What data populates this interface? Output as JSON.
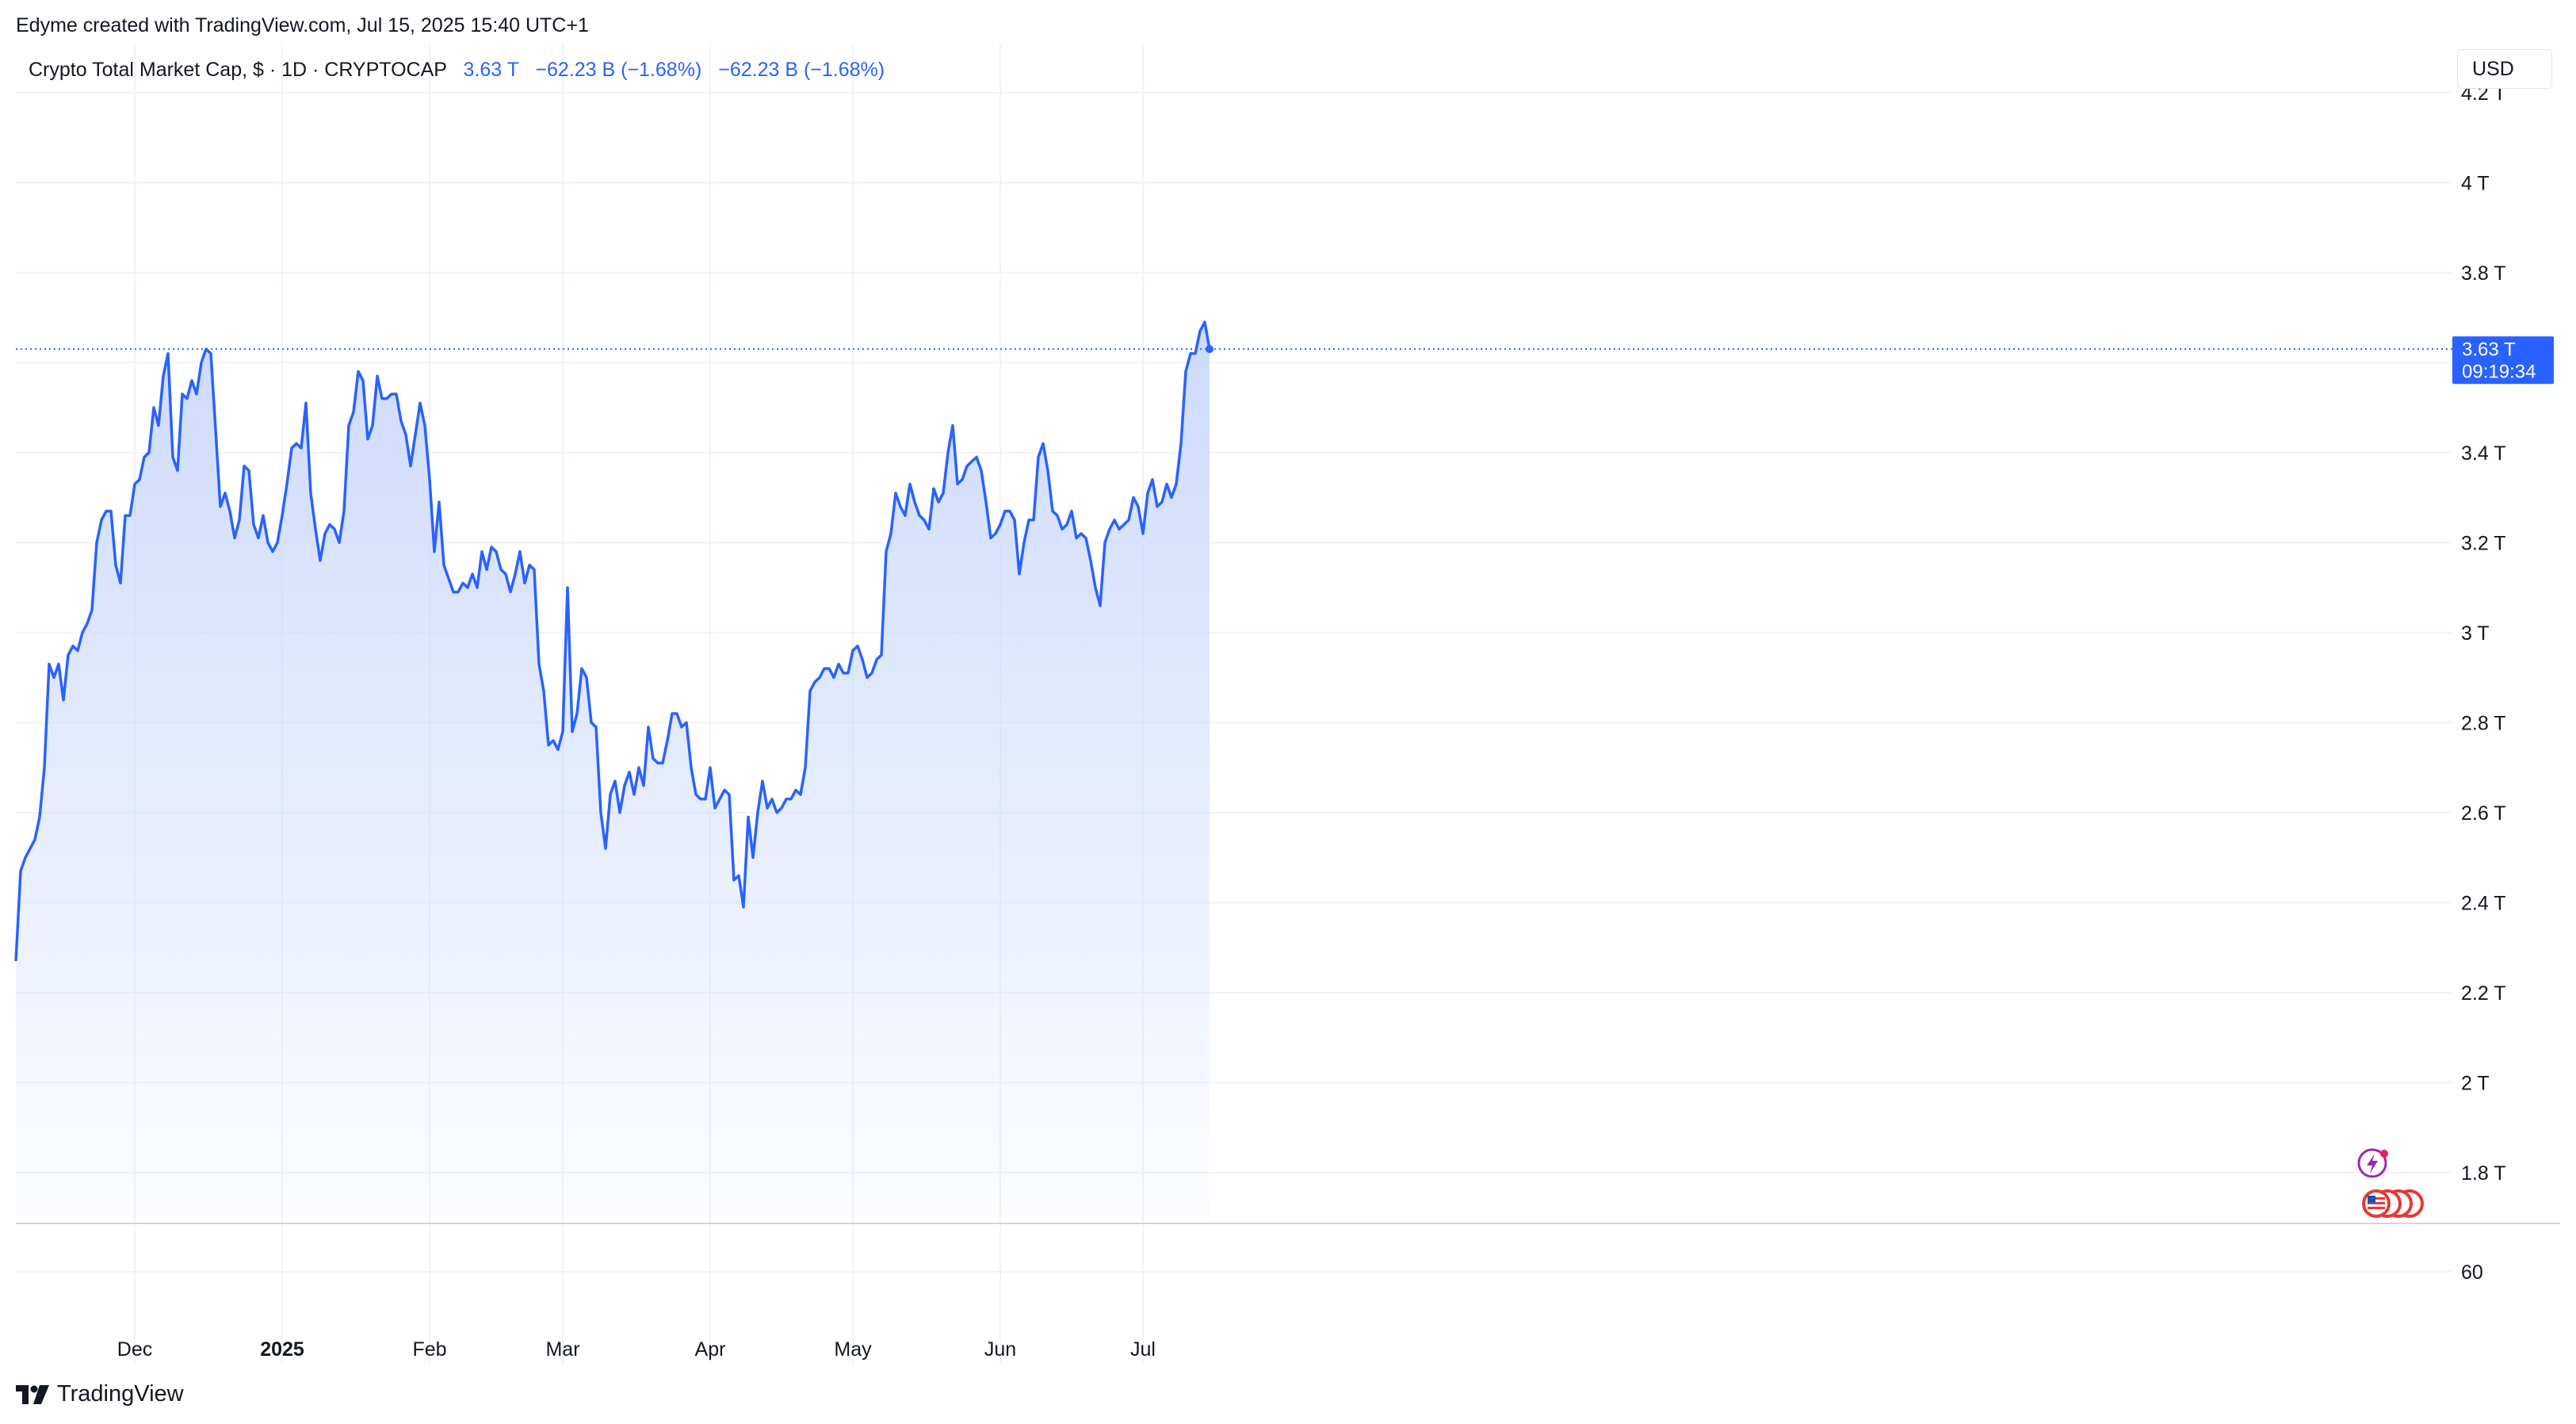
{
  "header": {
    "attribution": "Edyme created with TradingView.com, Jul 15, 2025 15:40 UTC+1"
  },
  "legend": {
    "symbol": "Crypto Total Market Cap, $ · 1D · CRYPTOCAP",
    "last": "3.63 T",
    "change1": "−62.23 B (−1.68%)",
    "change2": "−62.23 B (−1.68%)"
  },
  "currency_button": "USD",
  "price_tag": {
    "value": "3.63 T",
    "countdown": "09:19:34"
  },
  "footer": {
    "brand": "TradingView"
  },
  "colors": {
    "line": "#2962ff",
    "fill_top": "#c8d6fb",
    "grid": "#f0f3fa"
  },
  "chart_data": {
    "type": "area",
    "title": "Crypto Total Market Cap, $ · 1D · CRYPTOCAP",
    "xlabel": "",
    "ylabel": "",
    "y_unit": "T",
    "ylim": [
      1.7,
      4.3
    ],
    "y_ticks": [
      1.8,
      2.0,
      2.2,
      2.4,
      2.6,
      2.8,
      3.0,
      3.2,
      3.4,
      3.6,
      3.8,
      4.0,
      4.2
    ],
    "y_tick_labels": [
      "1.8 T",
      "2 T",
      "2.2 T",
      "2.4 T",
      "2.6 T",
      "2.8 T",
      "3 T",
      "3.2 T",
      "3.4 T",
      "3.6 T",
      "3.8 T",
      "4 T",
      "4.2 T"
    ],
    "x_ticks": [
      {
        "date": "2024-12-01",
        "label": "Dec",
        "bold": false
      },
      {
        "date": "2025-01-01",
        "label": "2025",
        "bold": true
      },
      {
        "date": "2025-02-01",
        "label": "Feb",
        "bold": false
      },
      {
        "date": "2025-03-01",
        "label": "Mar",
        "bold": false
      },
      {
        "date": "2025-04-01",
        "label": "Apr",
        "bold": false
      },
      {
        "date": "2025-05-01",
        "label": "May",
        "bold": false
      },
      {
        "date": "2025-06-01",
        "label": "Jun",
        "bold": false
      },
      {
        "date": "2025-07-01",
        "label": "Jul",
        "bold": false
      }
    ],
    "last_value": 3.63,
    "lower_pane": {
      "tick_label": "60"
    },
    "series": [
      {
        "values": [
          [
            "2024-11-06",
            2.27
          ],
          [
            "2024-11-07",
            2.47
          ],
          [
            "2024-11-08",
            2.5
          ],
          [
            "2024-11-09",
            2.52
          ],
          [
            "2024-11-10",
            2.54
          ],
          [
            "2024-11-11",
            2.59
          ],
          [
            "2024-11-12",
            2.7
          ],
          [
            "2024-11-13",
            2.93
          ],
          [
            "2024-11-14",
            2.9
          ],
          [
            "2024-11-15",
            2.93
          ],
          [
            "2024-11-16",
            2.85
          ],
          [
            "2024-11-17",
            2.95
          ],
          [
            "2024-11-18",
            2.97
          ],
          [
            "2024-11-19",
            2.96
          ],
          [
            "2024-11-20",
            3.0
          ],
          [
            "2024-11-21",
            3.02
          ],
          [
            "2024-11-22",
            3.05
          ],
          [
            "2024-11-23",
            3.2
          ],
          [
            "2024-11-24",
            3.25
          ],
          [
            "2024-11-25",
            3.27
          ],
          [
            "2024-11-26",
            3.27
          ],
          [
            "2024-11-27",
            3.15
          ],
          [
            "2024-11-28",
            3.11
          ],
          [
            "2024-11-29",
            3.26
          ],
          [
            "2024-11-30",
            3.26
          ],
          [
            "2024-12-01",
            3.33
          ],
          [
            "2024-12-02",
            3.34
          ],
          [
            "2024-12-03",
            3.39
          ],
          [
            "2024-12-04",
            3.4
          ],
          [
            "2024-12-05",
            3.5
          ],
          [
            "2024-12-06",
            3.46
          ],
          [
            "2024-12-07",
            3.57
          ],
          [
            "2024-12-08",
            3.62
          ],
          [
            "2024-12-09",
            3.39
          ],
          [
            "2024-12-10",
            3.36
          ],
          [
            "2024-12-11",
            3.53
          ],
          [
            "2024-12-12",
            3.52
          ],
          [
            "2024-12-13",
            3.56
          ],
          [
            "2024-12-14",
            3.53
          ],
          [
            "2024-12-15",
            3.6
          ],
          [
            "2024-12-16",
            3.63
          ],
          [
            "2024-12-17",
            3.62
          ],
          [
            "2024-12-18",
            3.45
          ],
          [
            "2024-12-19",
            3.28
          ],
          [
            "2024-12-20",
            3.31
          ],
          [
            "2024-12-21",
            3.27
          ],
          [
            "2024-12-22",
            3.21
          ],
          [
            "2024-12-23",
            3.25
          ],
          [
            "2024-12-24",
            3.37
          ],
          [
            "2024-12-25",
            3.36
          ],
          [
            "2024-12-26",
            3.24
          ],
          [
            "2024-12-27",
            3.21
          ],
          [
            "2024-12-28",
            3.26
          ],
          [
            "2024-12-29",
            3.2
          ],
          [
            "2024-12-30",
            3.18
          ],
          [
            "2024-12-31",
            3.2
          ],
          [
            "2025-01-01",
            3.26
          ],
          [
            "2025-01-02",
            3.33
          ],
          [
            "2025-01-03",
            3.41
          ],
          [
            "2025-01-04",
            3.42
          ],
          [
            "2025-01-05",
            3.41
          ],
          [
            "2025-01-06",
            3.51
          ],
          [
            "2025-01-07",
            3.31
          ],
          [
            "2025-01-08",
            3.23
          ],
          [
            "2025-01-09",
            3.16
          ],
          [
            "2025-01-10",
            3.22
          ],
          [
            "2025-01-11",
            3.24
          ],
          [
            "2025-01-12",
            3.23
          ],
          [
            "2025-01-13",
            3.2
          ],
          [
            "2025-01-14",
            3.27
          ],
          [
            "2025-01-15",
            3.46
          ],
          [
            "2025-01-16",
            3.49
          ],
          [
            "2025-01-17",
            3.58
          ],
          [
            "2025-01-18",
            3.56
          ],
          [
            "2025-01-19",
            3.43
          ],
          [
            "2025-01-20",
            3.46
          ],
          [
            "2025-01-21",
            3.57
          ],
          [
            "2025-01-22",
            3.52
          ],
          [
            "2025-01-23",
            3.52
          ],
          [
            "2025-01-24",
            3.53
          ],
          [
            "2025-01-25",
            3.53
          ],
          [
            "2025-01-26",
            3.47
          ],
          [
            "2025-01-27",
            3.44
          ],
          [
            "2025-01-28",
            3.37
          ],
          [
            "2025-01-29",
            3.44
          ],
          [
            "2025-01-30",
            3.51
          ],
          [
            "2025-01-31",
            3.46
          ],
          [
            "2025-02-01",
            3.34
          ],
          [
            "2025-02-02",
            3.18
          ],
          [
            "2025-02-03",
            3.29
          ],
          [
            "2025-02-04",
            3.15
          ],
          [
            "2025-02-05",
            3.12
          ],
          [
            "2025-02-06",
            3.09
          ],
          [
            "2025-02-07",
            3.09
          ],
          [
            "2025-02-08",
            3.11
          ],
          [
            "2025-02-09",
            3.1
          ],
          [
            "2025-02-10",
            3.13
          ],
          [
            "2025-02-11",
            3.1
          ],
          [
            "2025-02-12",
            3.18
          ],
          [
            "2025-02-13",
            3.14
          ],
          [
            "2025-02-14",
            3.19
          ],
          [
            "2025-02-15",
            3.18
          ],
          [
            "2025-02-16",
            3.14
          ],
          [
            "2025-02-17",
            3.13
          ],
          [
            "2025-02-18",
            3.09
          ],
          [
            "2025-02-19",
            3.13
          ],
          [
            "2025-02-20",
            3.18
          ],
          [
            "2025-02-21",
            3.11
          ],
          [
            "2025-02-22",
            3.15
          ],
          [
            "2025-02-23",
            3.14
          ],
          [
            "2025-02-24",
            2.93
          ],
          [
            "2025-02-25",
            2.87
          ],
          [
            "2025-02-26",
            2.75
          ],
          [
            "2025-02-27",
            2.76
          ],
          [
            "2025-02-28",
            2.74
          ],
          [
            "2025-03-01",
            2.78
          ],
          [
            "2025-03-02",
            3.1
          ],
          [
            "2025-03-03",
            2.78
          ],
          [
            "2025-03-04",
            2.82
          ],
          [
            "2025-03-05",
            2.92
          ],
          [
            "2025-03-06",
            2.9
          ],
          [
            "2025-03-07",
            2.8
          ],
          [
            "2025-03-08",
            2.79
          ],
          [
            "2025-03-09",
            2.6
          ],
          [
            "2025-03-10",
            2.52
          ],
          [
            "2025-03-11",
            2.64
          ],
          [
            "2025-03-12",
            2.67
          ],
          [
            "2025-03-13",
            2.6
          ],
          [
            "2025-03-14",
            2.66
          ],
          [
            "2025-03-15",
            2.69
          ],
          [
            "2025-03-16",
            2.64
          ],
          [
            "2025-03-17",
            2.7
          ],
          [
            "2025-03-18",
            2.66
          ],
          [
            "2025-03-19",
            2.79
          ],
          [
            "2025-03-20",
            2.72
          ],
          [
            "2025-03-21",
            2.71
          ],
          [
            "2025-03-22",
            2.71
          ],
          [
            "2025-03-23",
            2.76
          ],
          [
            "2025-03-24",
            2.82
          ],
          [
            "2025-03-25",
            2.82
          ],
          [
            "2025-03-26",
            2.79
          ],
          [
            "2025-03-27",
            2.8
          ],
          [
            "2025-03-28",
            2.7
          ],
          [
            "2025-03-29",
            2.64
          ],
          [
            "2025-03-30",
            2.63
          ],
          [
            "2025-03-31",
            2.63
          ],
          [
            "2025-04-01",
            2.7
          ],
          [
            "2025-04-02",
            2.61
          ],
          [
            "2025-04-03",
            2.63
          ],
          [
            "2025-04-04",
            2.65
          ],
          [
            "2025-04-05",
            2.64
          ],
          [
            "2025-04-06",
            2.45
          ],
          [
            "2025-04-07",
            2.46
          ],
          [
            "2025-04-08",
            2.39
          ],
          [
            "2025-04-09",
            2.59
          ],
          [
            "2025-04-10",
            2.5
          ],
          [
            "2025-04-11",
            2.6
          ],
          [
            "2025-04-12",
            2.67
          ],
          [
            "2025-04-13",
            2.61
          ],
          [
            "2025-04-14",
            2.63
          ],
          [
            "2025-04-15",
            2.6
          ],
          [
            "2025-04-16",
            2.61
          ],
          [
            "2025-04-17",
            2.63
          ],
          [
            "2025-04-18",
            2.63
          ],
          [
            "2025-04-19",
            2.65
          ],
          [
            "2025-04-20",
            2.64
          ],
          [
            "2025-04-21",
            2.7
          ],
          [
            "2025-04-22",
            2.87
          ],
          [
            "2025-04-23",
            2.89
          ],
          [
            "2025-04-24",
            2.9
          ],
          [
            "2025-04-25",
            2.92
          ],
          [
            "2025-04-26",
            2.92
          ],
          [
            "2025-04-27",
            2.9
          ],
          [
            "2025-04-28",
            2.93
          ],
          [
            "2025-04-29",
            2.91
          ],
          [
            "2025-04-30",
            2.91
          ],
          [
            "2025-05-01",
            2.96
          ],
          [
            "2025-05-02",
            2.97
          ],
          [
            "2025-05-03",
            2.94
          ],
          [
            "2025-05-04",
            2.9
          ],
          [
            "2025-05-05",
            2.91
          ],
          [
            "2025-05-06",
            2.94
          ],
          [
            "2025-05-07",
            2.95
          ],
          [
            "2025-05-08",
            3.18
          ],
          [
            "2025-05-09",
            3.22
          ],
          [
            "2025-05-10",
            3.31
          ],
          [
            "2025-05-11",
            3.28
          ],
          [
            "2025-05-12",
            3.26
          ],
          [
            "2025-05-13",
            3.33
          ],
          [
            "2025-05-14",
            3.29
          ],
          [
            "2025-05-15",
            3.26
          ],
          [
            "2025-05-16",
            3.25
          ],
          [
            "2025-05-17",
            3.23
          ],
          [
            "2025-05-18",
            3.32
          ],
          [
            "2025-05-19",
            3.29
          ],
          [
            "2025-05-20",
            3.31
          ],
          [
            "2025-05-21",
            3.4
          ],
          [
            "2025-05-22",
            3.46
          ],
          [
            "2025-05-23",
            3.33
          ],
          [
            "2025-05-24",
            3.34
          ],
          [
            "2025-05-25",
            3.37
          ],
          [
            "2025-05-26",
            3.38
          ],
          [
            "2025-05-27",
            3.39
          ],
          [
            "2025-05-28",
            3.36
          ],
          [
            "2025-05-29",
            3.29
          ],
          [
            "2025-05-30",
            3.21
          ],
          [
            "2025-05-31",
            3.22
          ],
          [
            "2025-06-01",
            3.24
          ],
          [
            "2025-06-02",
            3.27
          ],
          [
            "2025-06-03",
            3.27
          ],
          [
            "2025-06-04",
            3.25
          ],
          [
            "2025-06-05",
            3.13
          ],
          [
            "2025-06-06",
            3.2
          ],
          [
            "2025-06-07",
            3.25
          ],
          [
            "2025-06-08",
            3.25
          ],
          [
            "2025-06-09",
            3.39
          ],
          [
            "2025-06-10",
            3.42
          ],
          [
            "2025-06-11",
            3.36
          ],
          [
            "2025-06-12",
            3.27
          ],
          [
            "2025-06-13",
            3.26
          ],
          [
            "2025-06-14",
            3.23
          ],
          [
            "2025-06-15",
            3.24
          ],
          [
            "2025-06-16",
            3.27
          ],
          [
            "2025-06-17",
            3.21
          ],
          [
            "2025-06-18",
            3.22
          ],
          [
            "2025-06-19",
            3.21
          ],
          [
            "2025-06-20",
            3.16
          ],
          [
            "2025-06-21",
            3.1
          ],
          [
            "2025-06-22",
            3.06
          ],
          [
            "2025-06-23",
            3.2
          ],
          [
            "2025-06-24",
            3.23
          ],
          [
            "2025-06-25",
            3.25
          ],
          [
            "2025-06-26",
            3.23
          ],
          [
            "2025-06-27",
            3.24
          ],
          [
            "2025-06-28",
            3.25
          ],
          [
            "2025-06-29",
            3.3
          ],
          [
            "2025-06-30",
            3.28
          ],
          [
            "2025-07-01",
            3.22
          ],
          [
            "2025-07-02",
            3.31
          ],
          [
            "2025-07-03",
            3.34
          ],
          [
            "2025-07-04",
            3.28
          ],
          [
            "2025-07-05",
            3.29
          ],
          [
            "2025-07-06",
            3.33
          ],
          [
            "2025-07-07",
            3.3
          ],
          [
            "2025-07-08",
            3.33
          ],
          [
            "2025-07-09",
            3.42
          ],
          [
            "2025-07-10",
            3.58
          ],
          [
            "2025-07-11",
            3.62
          ],
          [
            "2025-07-12",
            3.62
          ],
          [
            "2025-07-13",
            3.67
          ],
          [
            "2025-07-14",
            3.69
          ],
          [
            "2025-07-15",
            3.63
          ]
        ]
      }
    ]
  }
}
